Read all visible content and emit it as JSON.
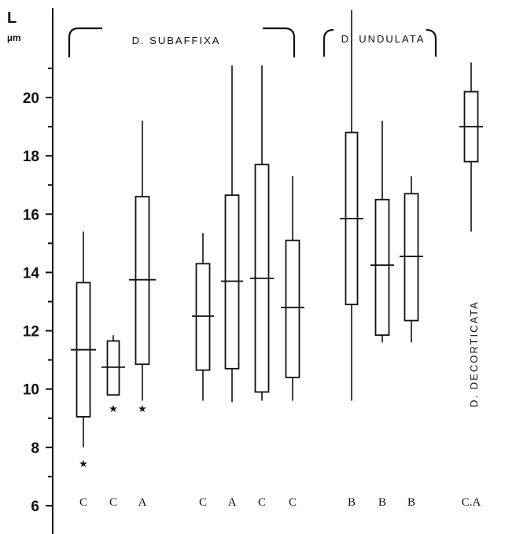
{
  "chart_data": {
    "type": "box",
    "y_axis_label": "L",
    "y_axis_unit": "µm",
    "ylim": [
      6,
      22
    ],
    "y_ticks": [
      6,
      8,
      10,
      12,
      14,
      16,
      18,
      20
    ],
    "groups": [
      {
        "name": "D. SUBAFFIXA",
        "members": [
          0,
          1,
          2,
          3,
          4,
          5,
          6
        ]
      },
      {
        "name": "D. UNDULATA",
        "members": [
          7,
          8,
          9
        ]
      },
      {
        "name": "D. DECORTICATA",
        "members": [
          10
        ]
      }
    ],
    "series": [
      {
        "code": "C",
        "min": 8.0,
        "q1": 9.05,
        "median": 11.35,
        "q3": 13.65,
        "max": 15.4,
        "star": true,
        "star_y": 7.45
      },
      {
        "code": "C",
        "min": 9.8,
        "q1": 9.8,
        "median": 10.75,
        "q3": 11.65,
        "max": 11.85,
        "star": true,
        "star_y": 9.35
      },
      {
        "code": "A",
        "min": 9.6,
        "q1": 10.85,
        "median": 13.75,
        "q3": 16.6,
        "max": 19.2,
        "star": true,
        "star_y": 9.35
      },
      {
        "code": "C",
        "min": 9.6,
        "q1": 10.65,
        "median": 12.5,
        "q3": 14.3,
        "max": 15.35,
        "star": false
      },
      {
        "code": "A",
        "min": 9.55,
        "q1": 10.7,
        "median": 13.7,
        "q3": 16.65,
        "max": 21.1,
        "star": false
      },
      {
        "code": "C",
        "min": 9.6,
        "q1": 9.9,
        "median": 13.8,
        "q3": 17.7,
        "max": 21.1,
        "star": false
      },
      {
        "code": "C",
        "min": 9.6,
        "q1": 10.4,
        "median": 12.8,
        "q3": 15.1,
        "max": 17.3,
        "star": false
      },
      {
        "code": "B",
        "min": 9.6,
        "q1": 12.9,
        "median": 15.85,
        "q3": 18.8,
        "max": 23.0,
        "star": false
      },
      {
        "code": "B",
        "min": 11.6,
        "q1": 11.85,
        "median": 14.25,
        "q3": 16.5,
        "max": 19.2,
        "star": false
      },
      {
        "code": "B",
        "min": 11.6,
        "q1": 12.35,
        "median": 14.55,
        "q3": 16.7,
        "max": 17.3,
        "star": false
      },
      {
        "code": "C.A",
        "min": 15.4,
        "q1": 17.8,
        "median": 19.0,
        "q3": 20.2,
        "max": 21.2,
        "star": false
      }
    ]
  }
}
